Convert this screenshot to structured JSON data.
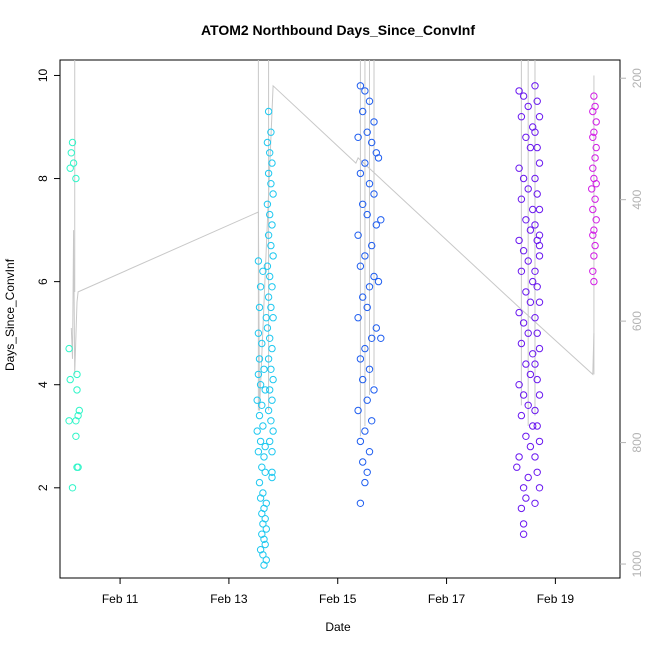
{
  "chart_data": {
    "type": "scatter",
    "title": "ATOM2 Northbound Days_Since_ConvInf",
    "xlabel": "Date",
    "ylabel": "Days_Since_ConvInf",
    "x_range": [
      "2021-02-09T21:30",
      "2021-02-20T04:30"
    ],
    "xlim": [
      "2021-02-09T21:30",
      "2021-02-20T04:30"
    ],
    "ylim": [
      0.25,
      10.3
    ],
    "y2lim": [
      1023,
      170
    ],
    "x_ticks": [
      {
        "date": "2021-02-11",
        "label": "Feb 11"
      },
      {
        "date": "2021-02-13",
        "label": "Feb 13"
      },
      {
        "date": "2021-02-15",
        "label": "Feb 15"
      },
      {
        "date": "2021-02-17",
        "label": "Feb 17"
      },
      {
        "date": "2021-02-19",
        "label": "Feb 19"
      }
    ],
    "y_ticks": [
      2,
      4,
      6,
      8,
      10
    ],
    "y2_ticks": [
      200,
      400,
      600,
      800,
      1000
    ],
    "colors": {
      "axis": "#000000",
      "right_axis": "#b3b3b3",
      "line": "#c8c8c8"
    },
    "series": [
      {
        "color": "#2ff5c8",
        "points": [
          [
            "2021-02-10T03:00",
            8.7
          ],
          [
            "2021-02-10T02:30",
            8.5
          ],
          [
            "2021-02-10T03:30",
            8.3
          ],
          [
            "2021-02-10T02:00",
            8.2
          ],
          [
            "2021-02-10T04:30",
            8.0
          ],
          [
            "2021-02-10T01:30",
            4.7
          ],
          [
            "2021-02-10T02:00",
            4.1
          ],
          [
            "2021-02-10T05:00",
            4.2
          ],
          [
            "2021-02-10T05:00",
            3.9
          ],
          [
            "2021-02-10T06:00",
            3.5
          ],
          [
            "2021-02-10T01:30",
            3.3
          ],
          [
            "2021-02-10T04:30",
            3.3
          ],
          [
            "2021-02-10T05:30",
            3.4
          ],
          [
            "2021-02-10T04:30",
            3.0
          ],
          [
            "2021-02-10T05:00",
            2.4
          ],
          [
            "2021-02-10T05:30",
            2.4
          ],
          [
            "2021-02-10T03:00",
            2.0
          ]
        ]
      },
      {
        "color": "#1ec8f0",
        "points": [
          [
            "2021-02-13T13:00",
            6.4
          ],
          [
            "2021-02-13T15:00",
            6.2
          ],
          [
            "2021-02-13T14:00",
            5.9
          ],
          [
            "2021-02-13T13:30",
            5.5
          ],
          [
            "2021-02-13T16:30",
            5.3
          ],
          [
            "2021-02-13T13:00",
            5.0
          ],
          [
            "2021-02-13T14:30",
            4.8
          ],
          [
            "2021-02-13T13:30",
            4.5
          ],
          [
            "2021-02-13T15:30",
            4.3
          ],
          [
            "2021-02-13T13:00",
            4.2
          ],
          [
            "2021-02-13T14:00",
            4.0
          ],
          [
            "2021-02-13T16:00",
            3.9
          ],
          [
            "2021-02-13T12:30",
            3.7
          ],
          [
            "2021-02-13T14:30",
            3.6
          ],
          [
            "2021-02-13T13:30",
            3.4
          ],
          [
            "2021-02-13T15:00",
            3.2
          ],
          [
            "2021-02-13T12:30",
            3.1
          ],
          [
            "2021-02-13T14:00",
            2.9
          ],
          [
            "2021-02-13T16:00",
            2.8
          ],
          [
            "2021-02-13T13:00",
            2.7
          ],
          [
            "2021-02-13T15:30",
            2.6
          ],
          [
            "2021-02-13T14:30",
            2.4
          ],
          [
            "2021-02-13T16:00",
            2.3
          ],
          [
            "2021-02-13T13:30",
            2.1
          ],
          [
            "2021-02-13T15:00",
            1.9
          ],
          [
            "2021-02-13T14:00",
            1.8
          ],
          [
            "2021-02-13T16:30",
            1.7
          ],
          [
            "2021-02-13T15:30",
            1.6
          ],
          [
            "2021-02-13T14:30",
            1.5
          ],
          [
            "2021-02-13T16:00",
            1.4
          ],
          [
            "2021-02-13T15:00",
            1.3
          ],
          [
            "2021-02-13T16:30",
            1.2
          ],
          [
            "2021-02-13T14:30",
            1.1
          ],
          [
            "2021-02-13T15:30",
            1.0
          ],
          [
            "2021-02-13T16:00",
            0.9
          ],
          [
            "2021-02-13T14:00",
            0.8
          ],
          [
            "2021-02-13T15:00",
            0.7
          ],
          [
            "2021-02-13T16:30",
            0.6
          ],
          [
            "2021-02-13T15:30",
            0.5
          ],
          [
            "2021-02-13T17:30",
            9.3
          ],
          [
            "2021-02-13T18:30",
            8.9
          ],
          [
            "2021-02-13T17:00",
            8.7
          ],
          [
            "2021-02-13T18:00",
            8.5
          ],
          [
            "2021-02-13T19:00",
            8.3
          ],
          [
            "2021-02-13T17:30",
            8.1
          ],
          [
            "2021-02-13T18:30",
            7.9
          ],
          [
            "2021-02-13T19:30",
            7.7
          ],
          [
            "2021-02-13T17:00",
            7.5
          ],
          [
            "2021-02-13T18:00",
            7.3
          ],
          [
            "2021-02-13T19:00",
            7.1
          ],
          [
            "2021-02-13T17:30",
            6.9
          ],
          [
            "2021-02-13T18:30",
            6.7
          ],
          [
            "2021-02-13T19:30",
            6.5
          ],
          [
            "2021-02-13T17:00",
            6.3
          ],
          [
            "2021-02-13T18:00",
            6.1
          ],
          [
            "2021-02-13T19:00",
            5.9
          ],
          [
            "2021-02-13T17:30",
            5.7
          ],
          [
            "2021-02-13T18:30",
            5.5
          ],
          [
            "2021-02-13T19:30",
            5.3
          ],
          [
            "2021-02-13T17:00",
            5.1
          ],
          [
            "2021-02-13T18:00",
            4.9
          ],
          [
            "2021-02-13T19:00",
            4.7
          ],
          [
            "2021-02-13T17:30",
            4.5
          ],
          [
            "2021-02-13T18:30",
            4.3
          ],
          [
            "2021-02-13T19:30",
            4.1
          ],
          [
            "2021-02-13T18:00",
            3.9
          ],
          [
            "2021-02-13T19:00",
            3.7
          ],
          [
            "2021-02-13T17:30",
            3.5
          ],
          [
            "2021-02-13T18:30",
            3.3
          ],
          [
            "2021-02-13T19:30",
            3.1
          ],
          [
            "2021-02-13T18:00",
            2.9
          ],
          [
            "2021-02-13T19:00",
            2.7
          ],
          [
            "2021-02-13T19:00",
            2.3
          ],
          [
            "2021-02-13T19:00",
            2.2
          ]
        ]
      },
      {
        "color": "#1f5ef0",
        "points": [
          [
            "2021-02-15T10:00",
            9.8
          ],
          [
            "2021-02-15T12:00",
            9.7
          ],
          [
            "2021-02-15T14:00",
            9.5
          ],
          [
            "2021-02-15T11:00",
            9.3
          ],
          [
            "2021-02-15T16:00",
            9.1
          ],
          [
            "2021-02-15T13:00",
            8.9
          ],
          [
            "2021-02-15T09:00",
            8.8
          ],
          [
            "2021-02-15T15:00",
            8.7
          ],
          [
            "2021-02-15T17:00",
            8.5
          ],
          [
            "2021-02-15T12:00",
            8.3
          ],
          [
            "2021-02-15T10:00",
            8.1
          ],
          [
            "2021-02-15T14:00",
            7.9
          ],
          [
            "2021-02-15T16:00",
            7.7
          ],
          [
            "2021-02-15T11:00",
            7.5
          ],
          [
            "2021-02-15T13:00",
            7.3
          ],
          [
            "2021-02-15T17:00",
            7.1
          ],
          [
            "2021-02-15T09:00",
            6.9
          ],
          [
            "2021-02-15T15:00",
            6.7
          ],
          [
            "2021-02-15T12:00",
            6.5
          ],
          [
            "2021-02-15T10:00",
            6.3
          ],
          [
            "2021-02-15T16:00",
            6.1
          ],
          [
            "2021-02-15T14:00",
            5.9
          ],
          [
            "2021-02-15T11:00",
            5.7
          ],
          [
            "2021-02-15T13:00",
            5.5
          ],
          [
            "2021-02-15T09:00",
            5.3
          ],
          [
            "2021-02-15T17:00",
            5.1
          ],
          [
            "2021-02-15T15:00",
            4.9
          ],
          [
            "2021-02-15T12:00",
            4.7
          ],
          [
            "2021-02-15T10:00",
            4.5
          ],
          [
            "2021-02-15T14:00",
            4.3
          ],
          [
            "2021-02-15T11:00",
            4.1
          ],
          [
            "2021-02-15T16:00",
            3.9
          ],
          [
            "2021-02-15T13:00",
            3.7
          ],
          [
            "2021-02-15T09:00",
            3.5
          ],
          [
            "2021-02-15T15:00",
            3.3
          ],
          [
            "2021-02-15T12:00",
            3.1
          ],
          [
            "2021-02-15T10:00",
            2.9
          ],
          [
            "2021-02-15T14:00",
            2.7
          ],
          [
            "2021-02-15T11:00",
            2.5
          ],
          [
            "2021-02-15T13:00",
            2.3
          ],
          [
            "2021-02-15T12:00",
            2.1
          ],
          [
            "2021-02-15T10:00",
            1.7
          ],
          [
            "2021-02-15T18:00",
            8.4
          ],
          [
            "2021-02-15T19:00",
            7.2
          ],
          [
            "2021-02-15T18:00",
            6.0
          ],
          [
            "2021-02-15T19:00",
            4.9
          ]
        ]
      },
      {
        "color": "#6a18f0",
        "points": [
          [
            "2021-02-18T08:00",
            9.7
          ],
          [
            "2021-02-18T10:00",
            9.6
          ],
          [
            "2021-02-18T12:00",
            9.4
          ],
          [
            "2021-02-18T09:00",
            9.2
          ],
          [
            "2021-02-18T14:00",
            9.0
          ],
          [
            "2021-02-18T11:00",
            8.8
          ],
          [
            "2021-02-18T13:00",
            8.6
          ],
          [
            "2021-02-18T08:00",
            8.2
          ],
          [
            "2021-02-18T10:00",
            8.0
          ],
          [
            "2021-02-18T12:00",
            7.8
          ],
          [
            "2021-02-18T09:00",
            7.6
          ],
          [
            "2021-02-18T14:00",
            7.4
          ],
          [
            "2021-02-18T11:00",
            7.2
          ],
          [
            "2021-02-18T13:00",
            7.0
          ],
          [
            "2021-02-18T08:00",
            6.8
          ],
          [
            "2021-02-18T10:00",
            6.6
          ],
          [
            "2021-02-18T12:00",
            6.4
          ],
          [
            "2021-02-18T09:00",
            6.2
          ],
          [
            "2021-02-18T14:00",
            6.0
          ],
          [
            "2021-02-18T11:00",
            5.8
          ],
          [
            "2021-02-18T13:00",
            5.6
          ],
          [
            "2021-02-18T08:00",
            5.4
          ],
          [
            "2021-02-18T10:00",
            5.2
          ],
          [
            "2021-02-18T12:00",
            5.0
          ],
          [
            "2021-02-18T09:00",
            4.8
          ],
          [
            "2021-02-18T14:00",
            4.6
          ],
          [
            "2021-02-18T11:00",
            4.4
          ],
          [
            "2021-02-18T13:00",
            4.2
          ],
          [
            "2021-02-18T08:00",
            4.0
          ],
          [
            "2021-02-18T10:00",
            3.8
          ],
          [
            "2021-02-18T12:00",
            3.6
          ],
          [
            "2021-02-18T09:00",
            3.4
          ],
          [
            "2021-02-18T14:00",
            3.2
          ],
          [
            "2021-02-18T11:00",
            3.0
          ],
          [
            "2021-02-18T13:00",
            2.8
          ],
          [
            "2021-02-18T08:00",
            2.6
          ],
          [
            "2021-02-18T07:00",
            2.4
          ],
          [
            "2021-02-18T12:00",
            2.2
          ],
          [
            "2021-02-18T10:00",
            2.0
          ],
          [
            "2021-02-18T11:00",
            1.8
          ],
          [
            "2021-02-18T09:00",
            1.6
          ],
          [
            "2021-02-18T10:00",
            1.3
          ],
          [
            "2021-02-18T10:00",
            1.1
          ],
          [
            "2021-02-18T15:00",
            9.8
          ],
          [
            "2021-02-18T16:00",
            9.5
          ],
          [
            "2021-02-18T17:00",
            9.2
          ],
          [
            "2021-02-18T15:00",
            8.9
          ],
          [
            "2021-02-18T16:00",
            8.6
          ],
          [
            "2021-02-18T17:00",
            8.3
          ],
          [
            "2021-02-18T15:00",
            8.0
          ],
          [
            "2021-02-18T16:00",
            7.7
          ],
          [
            "2021-02-18T17:00",
            7.4
          ],
          [
            "2021-02-18T15:00",
            7.1
          ],
          [
            "2021-02-18T16:00",
            6.8
          ],
          [
            "2021-02-18T17:00",
            6.5
          ],
          [
            "2021-02-18T15:00",
            6.2
          ],
          [
            "2021-02-18T16:00",
            5.9
          ],
          [
            "2021-02-18T17:00",
            5.6
          ],
          [
            "2021-02-18T15:00",
            5.3
          ],
          [
            "2021-02-18T16:00",
            5.0
          ],
          [
            "2021-02-18T17:00",
            4.7
          ],
          [
            "2021-02-18T15:00",
            4.4
          ],
          [
            "2021-02-18T16:00",
            4.1
          ],
          [
            "2021-02-18T17:00",
            3.8
          ],
          [
            "2021-02-18T15:00",
            3.5
          ],
          [
            "2021-02-18T16:00",
            3.2
          ],
          [
            "2021-02-18T17:00",
            2.9
          ],
          [
            "2021-02-18T15:00",
            2.6
          ],
          [
            "2021-02-18T16:00",
            2.3
          ],
          [
            "2021-02-18T17:00",
            2.0
          ],
          [
            "2021-02-18T15:00",
            1.7
          ],
          [
            "2021-02-18T17:00",
            6.9
          ],
          [
            "2021-02-18T17:00",
            6.7
          ]
        ]
      },
      {
        "color": "#d21ee6",
        "points": [
          [
            "2021-02-19T17:00",
            9.6
          ],
          [
            "2021-02-19T17:30",
            9.4
          ],
          [
            "2021-02-19T16:30",
            9.3
          ],
          [
            "2021-02-19T18:00",
            9.1
          ],
          [
            "2021-02-19T17:00",
            8.9
          ],
          [
            "2021-02-19T16:30",
            8.8
          ],
          [
            "2021-02-19T18:00",
            8.6
          ],
          [
            "2021-02-19T17:30",
            8.4
          ],
          [
            "2021-02-19T16:30",
            8.2
          ],
          [
            "2021-02-19T17:00",
            8.0
          ],
          [
            "2021-02-19T18:00",
            7.9
          ],
          [
            "2021-02-19T16:00",
            7.8
          ],
          [
            "2021-02-19T17:30",
            7.6
          ],
          [
            "2021-02-19T16:30",
            7.4
          ],
          [
            "2021-02-19T18:00",
            7.2
          ],
          [
            "2021-02-19T17:00",
            7.0
          ],
          [
            "2021-02-19T16:30",
            6.9
          ],
          [
            "2021-02-19T17:30",
            6.7
          ],
          [
            "2021-02-19T17:00",
            6.5
          ],
          [
            "2021-02-19T16:30",
            6.2
          ],
          [
            "2021-02-19T17:00",
            6.0
          ]
        ]
      }
    ],
    "line_path": [
      [
        "2021-02-10T02:30",
        5.1
      ],
      [
        "2021-02-10T03:00",
        4.5
      ],
      [
        "2021-02-10T03:30",
        7.0
      ],
      [
        "2021-02-10T04:00",
        4.2
      ],
      [
        "2021-02-10T05:00",
        5.6
      ],
      [
        "2021-02-10T05:30",
        5.8
      ],
      [
        "2021-02-13T13:00",
        7.35
      ],
      [
        "2021-02-13T13:30",
        3.5
      ],
      [
        "2021-02-13T19:30",
        9.8
      ],
      [
        "2021-02-15T08:00",
        8.3
      ],
      [
        "2021-02-15T09:00",
        8.4
      ],
      [
        "2021-02-18T08:00",
        5.5
      ],
      [
        "2021-02-19T16:30",
        4.2
      ],
      [
        "2021-02-19T17:00",
        5.0
      ]
    ]
  }
}
